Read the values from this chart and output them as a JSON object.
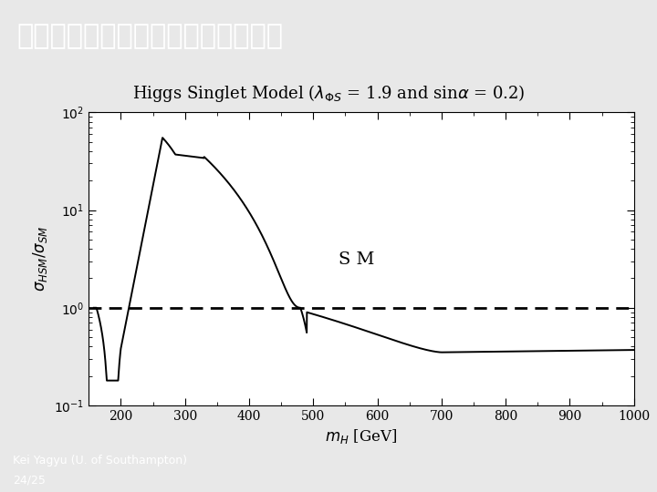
{
  "title_jp": "ヒッグス対生成に対するインパクト",
  "subtitle_latex": "Higgs Singlet Model ($\\lambda_{\\Phi S}$ = 1.9 and sin$\\alpha$ = 0.2)",
  "sm_label": "S M",
  "footer_line1": "Kei Yagyu (U. of Southampton)",
  "footer_line2": "24/25",
  "title_bg_color": "#2a4a72",
  "footer_bg_color": "#2a4a72",
  "bg_color": "#e8e8e8",
  "plot_bg_color": "#ffffff",
  "xmin": 150,
  "xmax": 1000,
  "ymin": 0.1,
  "ymax": 100,
  "x_ticks": [
    200,
    300,
    400,
    500,
    600,
    700,
    800,
    900,
    1000
  ],
  "title_fontsize": 22,
  "subtitle_fontsize": 13,
  "footer_fontsize": 9,
  "axis_label_fontsize": 12,
  "tick_fontsize": 10,
  "sm_fontsize": 14
}
